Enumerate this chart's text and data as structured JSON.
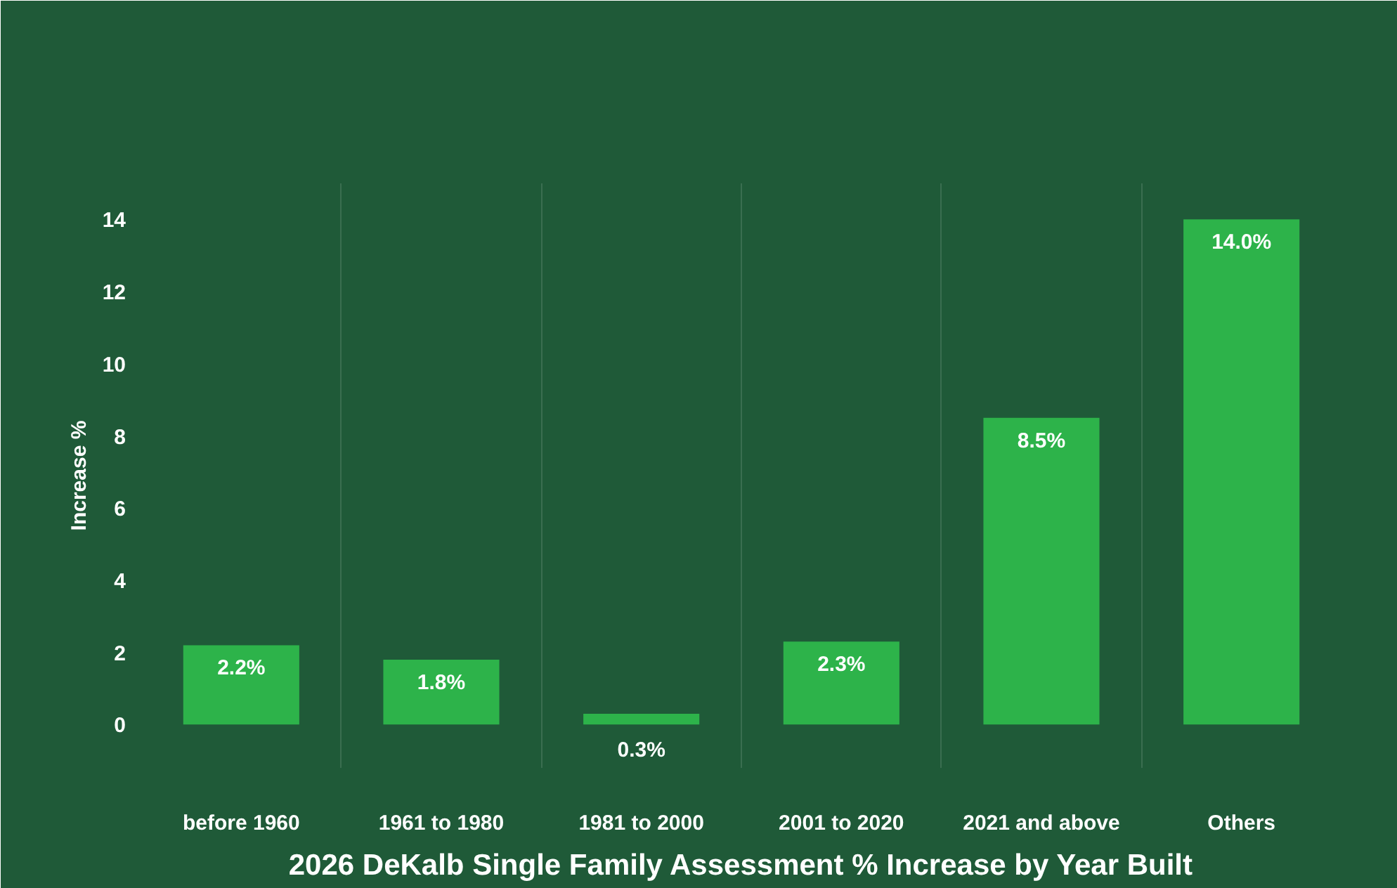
{
  "chart_data": {
    "type": "bar",
    "title": "2026 DeKalb Single Family Assessment % Increase by Year Built",
    "ylabel": "Increase %",
    "categories": [
      "before 1960",
      "1961 to 1980",
      "1981 to 2000",
      "2001 to 2020",
      "2021 and above",
      "Others"
    ],
    "values": [
      2.2,
      1.8,
      0.3,
      2.3,
      8.5,
      14.0
    ],
    "value_labels": [
      "2.2%",
      "1.8%",
      "0.3%",
      "2.3%",
      "8.5%",
      "14.0%"
    ],
    "color": "#2db34a",
    "ylim": [
      -1.2,
      15
    ],
    "yticks": [
      0,
      2,
      4,
      6,
      8,
      10,
      12,
      14
    ],
    "grid": "x"
  }
}
